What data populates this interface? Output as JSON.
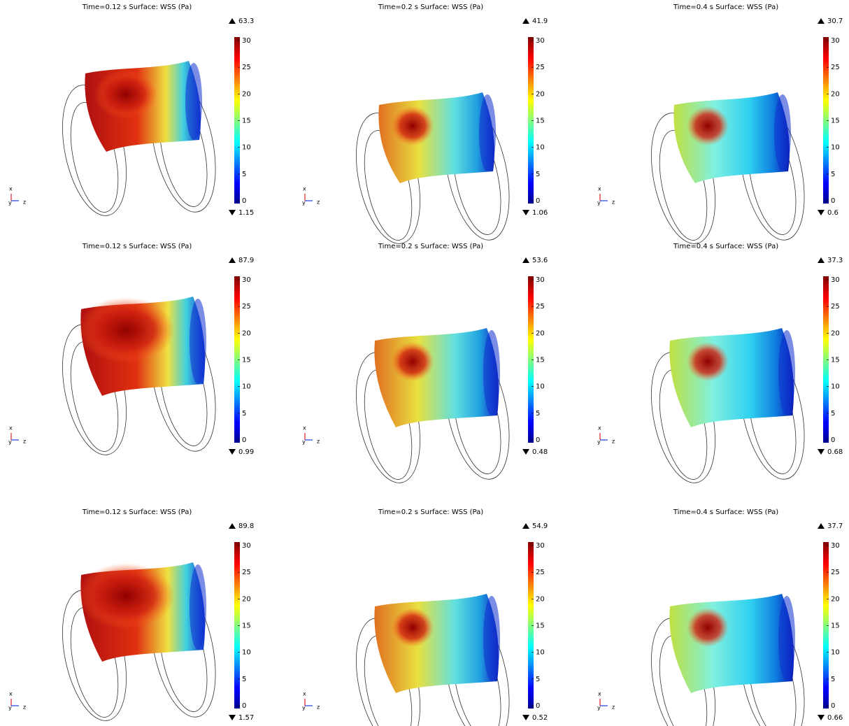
{
  "panels": [
    {
      "title": "Time=0.12 s   Surface: WSS (Pa)",
      "max": "63.3",
      "min": "1.15"
    },
    {
      "title": "Time=0.2 s   Surface: WSS (Pa)",
      "max": "41.9",
      "min": "1.06"
    },
    {
      "title": "Time=0.4 s   Surface: WSS (Pa)",
      "max": "30.7",
      "min": "0.6"
    },
    {
      "title": "Time=0.12 s   Surface: WSS (Pa)",
      "max": "87.9",
      "min": "0.99"
    },
    {
      "title": "Time=0.2 s   Surface: WSS (Pa)",
      "max": "53.6",
      "min": "0.48"
    },
    {
      "title": "Time=0.4 s   Surface: WSS (Pa)",
      "max": "37.3",
      "min": "0.68"
    },
    {
      "title": "Time=0.12 s   Surface: WSS (Pa)",
      "max": "89.8",
      "min": "1.57"
    },
    {
      "title": "Time=0.2 s   Surface: WSS (Pa)",
      "max": "54.9",
      "min": "0.52"
    },
    {
      "title": "Time=0.4 s   Surface: WSS (Pa)",
      "max": "37.7",
      "min": "0.66"
    }
  ],
  "colorbar": {
    "ticks": [
      0,
      5,
      10,
      15,
      20,
      25,
      30
    ]
  },
  "axes": {
    "x": "x",
    "y": "y",
    "z": "z"
  }
}
